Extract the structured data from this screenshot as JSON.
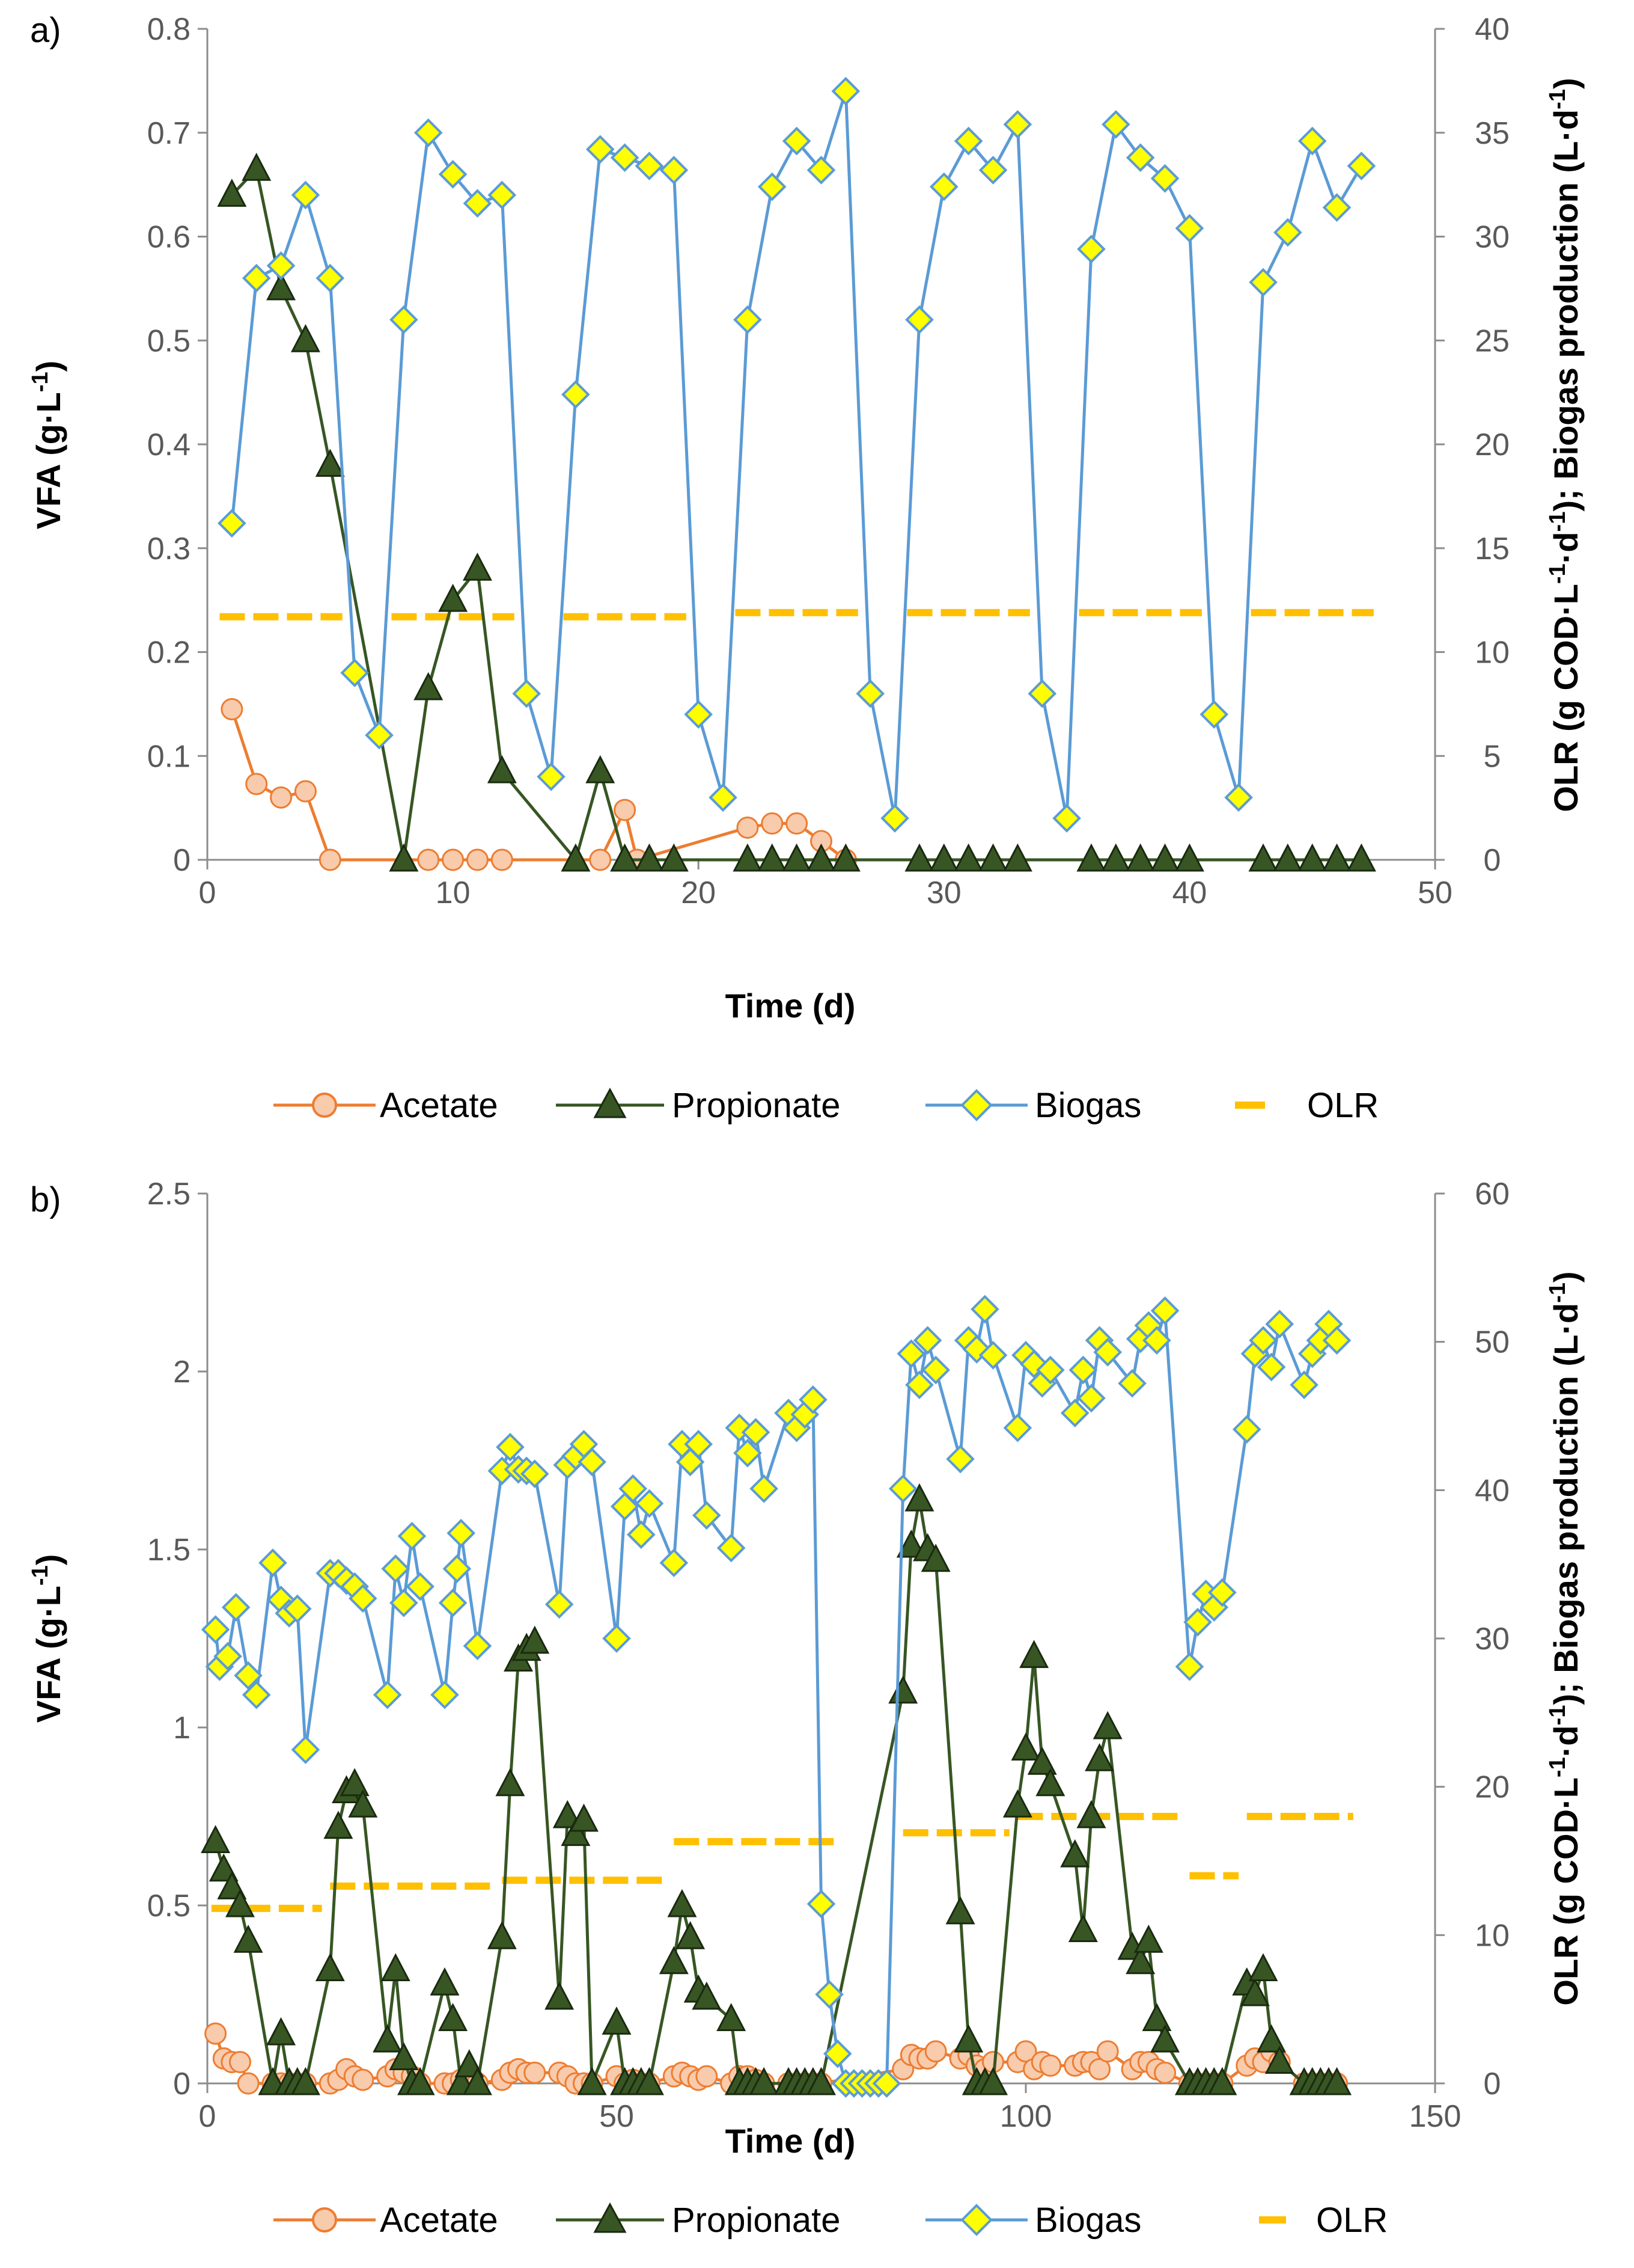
{
  "chart_data": [
    {
      "type": "line",
      "panel_label": "a)",
      "xlabel": "Time (d)",
      "ylabel": "VFA (g·L-1)",
      "ylabel_parts": [
        "VFA (g·L",
        "-1",
        ")"
      ],
      "y2label": "OLR (g COD·L-1·d-1); Biogas production (L·d-1)",
      "y2label_parts": [
        "OLR (g COD·L",
        "-1",
        "·d",
        "-1",
        ");  Biogas production (L·d",
        "-1",
        ")"
      ],
      "xlim": [
        0,
        50
      ],
      "xticks": [
        0,
        10,
        20,
        30,
        40,
        50
      ],
      "ylim": [
        0,
        0.8
      ],
      "yticks": [
        0,
        0.1,
        0.2,
        0.3,
        0.4,
        0.5,
        0.6,
        0.7,
        0.8
      ],
      "ytick_labels": [
        "0",
        "0.1",
        "0.2",
        "0.3",
        "0.4",
        "0.5",
        "0.6",
        "0.7",
        "0.8"
      ],
      "y2lim": [
        0,
        40
      ],
      "y2ticks": [
        0,
        5,
        10,
        15,
        20,
        25,
        30,
        35,
        40
      ],
      "grid": false,
      "legend_labels": [
        "Acetate",
        "Propionate",
        "Biogas",
        "OLR"
      ],
      "series": [
        {
          "name": "Acetate",
          "axis": "left",
          "color": "#ED7D31",
          "marker": "circle",
          "marker_fill": "#F8CBAD",
          "x": [
            1,
            2,
            3,
            4,
            5,
            9,
            10,
            11,
            12,
            16,
            17,
            17.5,
            22,
            23,
            24,
            25,
            26
          ],
          "y": [
            0.145,
            0.073,
            0.06,
            0.066,
            0,
            0,
            0,
            0,
            0,
            0,
            0.048,
            0,
            0.031,
            0.035,
            0.035,
            0.018,
            0
          ]
        },
        {
          "name": "Propionate",
          "axis": "left",
          "color": "#375623",
          "marker": "triangle",
          "marker_fill": "#375623",
          "x": [
            1,
            2,
            3,
            4,
            5,
            8,
            9,
            10,
            11,
            12,
            15,
            16,
            17,
            18,
            19,
            22,
            23,
            24,
            25,
            26,
            29,
            30,
            31,
            32,
            33,
            36,
            37,
            38,
            39,
            40,
            43,
            44,
            45,
            46,
            47
          ],
          "y": [
            0.64,
            0.665,
            0.55,
            0.5,
            0.38,
            0,
            0.165,
            0.25,
            0.28,
            0.085,
            0,
            0.085,
            0,
            0,
            0,
            0,
            0,
            0,
            0,
            0,
            0,
            0,
            0,
            0,
            0,
            0,
            0,
            0,
            0,
            0,
            0,
            0,
            0,
            0,
            0
          ]
        },
        {
          "name": "Biogas",
          "axis": "right",
          "color": "#5B9BD5",
          "marker": "diamond",
          "marker_fill": "#FFFF00",
          "x": [
            1,
            2,
            3,
            4,
            5,
            6,
            7,
            8,
            9,
            10,
            11,
            12,
            13,
            14,
            15,
            16,
            17,
            18,
            19,
            20,
            21,
            22,
            23,
            24,
            25,
            26,
            27,
            28,
            29,
            30,
            31,
            32,
            33,
            34,
            35,
            36,
            37,
            38,
            39,
            40,
            41,
            42,
            43,
            44,
            45,
            46,
            47
          ],
          "y": [
            16.2,
            28,
            28.6,
            32,
            28,
            9,
            6,
            26,
            35,
            33,
            31.6,
            32,
            8,
            4,
            22.4,
            34.2,
            33.8,
            33.4,
            33.2,
            7,
            3,
            26,
            32.4,
            34.6,
            33.2,
            37,
            8,
            2,
            26,
            32.4,
            34.6,
            33.2,
            35.4,
            8,
            2,
            29.4,
            35.4,
            33.8,
            32.8,
            30.4,
            7,
            3,
            27.8,
            30.2,
            34.6,
            31.4,
            33.4
          ]
        },
        {
          "name": "OLR",
          "axis": "right",
          "color": "#FFC000",
          "style": "dash",
          "segments": [
            {
              "x0": 0.5,
              "x1": 5.5,
              "y": 11.7
            },
            {
              "x0": 7.5,
              "x1": 12.5,
              "y": 11.7
            },
            {
              "x0": 14.5,
              "x1": 19.5,
              "y": 11.7
            },
            {
              "x0": 21.5,
              "x1": 26.5,
              "y": 11.9
            },
            {
              "x0": 28.5,
              "x1": 33.5,
              "y": 11.9
            },
            {
              "x0": 35.5,
              "x1": 40.5,
              "y": 11.9
            },
            {
              "x0": 42.5,
              "x1": 47.5,
              "y": 11.9
            }
          ]
        }
      ]
    },
    {
      "type": "line",
      "panel_label": "b)",
      "xlabel": "Time (d)",
      "ylabel": "VFA (g·L-1)",
      "ylabel_parts": [
        "VFA (g·L",
        "-1",
        ")"
      ],
      "y2label": "OLR (g COD·L-1·d-1); Biogas production (L·d-1)",
      "y2label_parts": [
        "OLR (g COD·L",
        "-1",
        "·d",
        "-1",
        ");  Biogas production (L·d",
        "-1",
        ")"
      ],
      "xlim": [
        0,
        150
      ],
      "xticks": [
        0,
        50,
        100,
        150
      ],
      "ylim": [
        0,
        2.5
      ],
      "yticks": [
        0,
        0.5,
        1,
        1.5,
        2,
        2.5
      ],
      "ytick_labels": [
        "0",
        "0.5",
        "1",
        "1.5",
        "2",
        "2.5"
      ],
      "y2lim": [
        0,
        60
      ],
      "y2ticks": [
        0,
        10,
        20,
        30,
        40,
        50,
        60
      ],
      "grid": false,
      "legend_labels": [
        "Acetate",
        "Propionate",
        "Biogas",
        "OLR"
      ],
      "series": [
        {
          "name": "Acetate",
          "axis": "left",
          "color": "#ED7D31",
          "marker": "circle",
          "marker_fill": "#F8CBAD",
          "x": [
            1,
            2,
            3,
            4,
            5,
            8,
            9,
            10,
            11,
            12,
            15,
            16,
            17,
            18,
            19,
            22,
            23,
            24,
            25,
            26,
            29,
            30,
            31,
            32,
            33,
            36,
            37,
            38,
            39,
            40,
            43,
            44,
            45,
            46,
            47,
            50,
            51,
            52,
            53,
            54,
            57,
            58,
            59,
            60,
            61,
            64,
            65,
            66,
            67,
            68,
            71,
            72,
            73,
            74,
            75,
            85,
            86,
            87,
            88,
            89,
            92,
            93,
            94,
            95,
            96,
            99,
            100,
            101,
            102,
            103,
            106,
            107,
            108,
            109,
            110,
            113,
            114,
            115,
            116,
            117,
            120,
            121,
            122,
            123,
            124,
            127,
            128,
            129,
            130,
            131,
            134,
            135,
            136,
            137,
            138
          ],
          "y": [
            0.14,
            0.07,
            0.06,
            0.06,
            0.0,
            0.0,
            0.0,
            0.0,
            0.0,
            0.0,
            0.0,
            0.01,
            0.04,
            0.02,
            0.01,
            0.02,
            0.04,
            0.03,
            0.02,
            0.0,
            0.0,
            0.0,
            0.01,
            0.0,
            0.0,
            0.01,
            0.03,
            0.04,
            0.03,
            0.03,
            0.03,
            0.02,
            0.0,
            0.0,
            0.0,
            0.02,
            0.0,
            0.01,
            0.0,
            0.0,
            0.02,
            0.03,
            0.02,
            0.01,
            0.02,
            0.0,
            0.02,
            0.02,
            0.01,
            0.0,
            0.0,
            0.0,
            0.0,
            0.0,
            0.0,
            0.04,
            0.08,
            0.07,
            0.07,
            0.09,
            0.07,
            0.08,
            0.05,
            0.04,
            0.06,
            0.06,
            0.09,
            0.04,
            0.06,
            0.05,
            0.05,
            0.06,
            0.06,
            0.04,
            0.09,
            0.04,
            0.06,
            0.06,
            0.04,
            0.03,
            0.0,
            0.0,
            0.0,
            0.0,
            0.0,
            0.05,
            0.07,
            0.06,
            0.09,
            0.06,
            0.0,
            0.0,
            0.0,
            0.0,
            0.0
          ]
        },
        {
          "name": "Propionate",
          "axis": "left",
          "color": "#375623",
          "marker": "triangle",
          "marker_fill": "#375623",
          "x": [
            1,
            2,
            3,
            4,
            5,
            8,
            9,
            10,
            11,
            12,
            15,
            16,
            17,
            18,
            19,
            22,
            23,
            24,
            25,
            26,
            29,
            30,
            31,
            32,
            33,
            36,
            37,
            38,
            39,
            40,
            43,
            44,
            45,
            46,
            47,
            50,
            51,
            52,
            53,
            54,
            57,
            58,
            59,
            60,
            61,
            64,
            65,
            66,
            67,
            68,
            71,
            72,
            73,
            74,
            75,
            85,
            86,
            87,
            88,
            89,
            92,
            93,
            94,
            95,
            96,
            99,
            100,
            101,
            102,
            103,
            106,
            107,
            108,
            109,
            110,
            113,
            114,
            115,
            116,
            117,
            120,
            121,
            122,
            123,
            124,
            127,
            128,
            129,
            130,
            131,
            134,
            135,
            136,
            137,
            138
          ],
          "y": [
            0.68,
            0.6,
            0.55,
            0.5,
            0.4,
            0.0,
            0.14,
            0.0,
            0.0,
            0.0,
            0.32,
            0.72,
            0.82,
            0.84,
            0.78,
            0.12,
            0.32,
            0.07,
            0.0,
            0.0,
            0.28,
            0.18,
            0.0,
            0.05,
            0.0,
            0.41,
            0.84,
            1.19,
            1.22,
            1.24,
            0.24,
            0.75,
            0.7,
            0.74,
            0.0,
            0.17,
            0.0,
            0.0,
            0.0,
            0.0,
            0.34,
            0.5,
            0.41,
            0.26,
            0.24,
            0.18,
            0.0,
            0.0,
            0.0,
            0.0,
            0.0,
            0.0,
            0.0,
            0.0,
            0.0,
            1.1,
            1.51,
            1.64,
            1.5,
            1.47,
            0.48,
            0.12,
            0.0,
            0.0,
            0.0,
            0.78,
            0.94,
            1.2,
            0.9,
            0.84,
            0.64,
            0.43,
            0.75,
            0.91,
            1.0,
            0.38,
            0.34,
            0.4,
            0.18,
            0.12,
            0.0,
            0.0,
            0.0,
            0.0,
            0.0,
            0.28,
            0.25,
            0.32,
            0.12,
            0.06,
            0.0,
            0.0,
            0.0,
            0.0,
            0.0
          ]
        },
        {
          "name": "Biogas",
          "axis": "right",
          "color": "#5B9BD5",
          "marker": "diamond",
          "marker_fill": "#FFFF00",
          "x": [
            1,
            1.5,
            2.5,
            3.5,
            5,
            6,
            8,
            9,
            10,
            11,
            12,
            15,
            16,
            17,
            18,
            19,
            22,
            23,
            24,
            25,
            26,
            29,
            30,
            30.5,
            31,
            33,
            36,
            37,
            38,
            39,
            40,
            43,
            44,
            45,
            46,
            47,
            50,
            51,
            52,
            53,
            54,
            57,
            58,
            59,
            60,
            61,
            64,
            65,
            66,
            67,
            68,
            71,
            72,
            73,
            74,
            75,
            76,
            77,
            78,
            79,
            80,
            81,
            82,
            83,
            85,
            86,
            87,
            88,
            89,
            92,
            93,
            94,
            95,
            96,
            99,
            100,
            101,
            102,
            103,
            106,
            107,
            108,
            109,
            110,
            113,
            114,
            115,
            116,
            117,
            120,
            121,
            122,
            123,
            124,
            127,
            128,
            129,
            130,
            131,
            134,
            135,
            136,
            137,
            138
          ],
          "y": [
            30.6,
            28.1,
            28.8,
            32.1,
            27.5,
            26.2,
            35.1,
            32.6,
            31.7,
            32,
            22.5,
            34.4,
            34.4,
            33.9,
            33.5,
            32.7,
            26.2,
            34.7,
            32.4,
            36.9,
            33.5,
            26.2,
            32.4,
            34.7,
            37.1,
            29.5,
            41.3,
            42.9,
            41.4,
            41.3,
            41.1,
            32.3,
            41.7,
            42.3,
            43.1,
            41.9,
            30,
            38.9,
            40.1,
            37,
            39.1,
            35.1,
            43.1,
            41.9,
            43.1,
            38.3,
            36.1,
            44.2,
            42.5,
            43.9,
            40.1,
            45.2,
            44.2,
            45.1,
            46.1,
            12.1,
            6.0,
            2.0,
            0,
            0,
            0,
            0,
            0,
            0,
            40.1,
            49.2,
            47.1,
            50.1,
            48.1,
            42.1,
            50.1,
            49.5,
            52.2,
            49.1,
            44.2,
            49.1,
            48.5,
            47.2,
            48.1,
            45.2,
            48.1,
            46.2,
            50.1,
            49.3,
            47.2,
            50.2,
            51.1,
            50.1,
            52.1,
            28.1,
            31.1,
            33.0,
            32.1,
            33.1,
            44.1,
            49.2,
            50.1,
            48.3,
            51.2,
            47.1,
            49.2,
            50.1,
            51.2,
            50.1
          ]
        },
        {
          "name": "OLR",
          "axis": "right",
          "color": "#FFC000",
          "style": "dash",
          "segments": [
            {
              "x0": 0.5,
              "x1": 14,
              "y": 11.8
            },
            {
              "x0": 15,
              "x1": 35,
              "y": 13.3
            },
            {
              "x0": 36,
              "x1": 56,
              "y": 13.7
            },
            {
              "x0": 57,
              "x1": 77,
              "y": 16.3
            },
            {
              "x0": 77.5,
              "x1": 84,
              "y": 0
            },
            {
              "x0": 85,
              "x1": 98,
              "y": 16.9
            },
            {
              "x0": 99,
              "x1": 119,
              "y": 18.0
            },
            {
              "x0": 120,
              "x1": 126,
              "y": 14.0
            },
            {
              "x0": 127,
              "x1": 140,
              "y": 18.0
            }
          ]
        }
      ]
    }
  ]
}
